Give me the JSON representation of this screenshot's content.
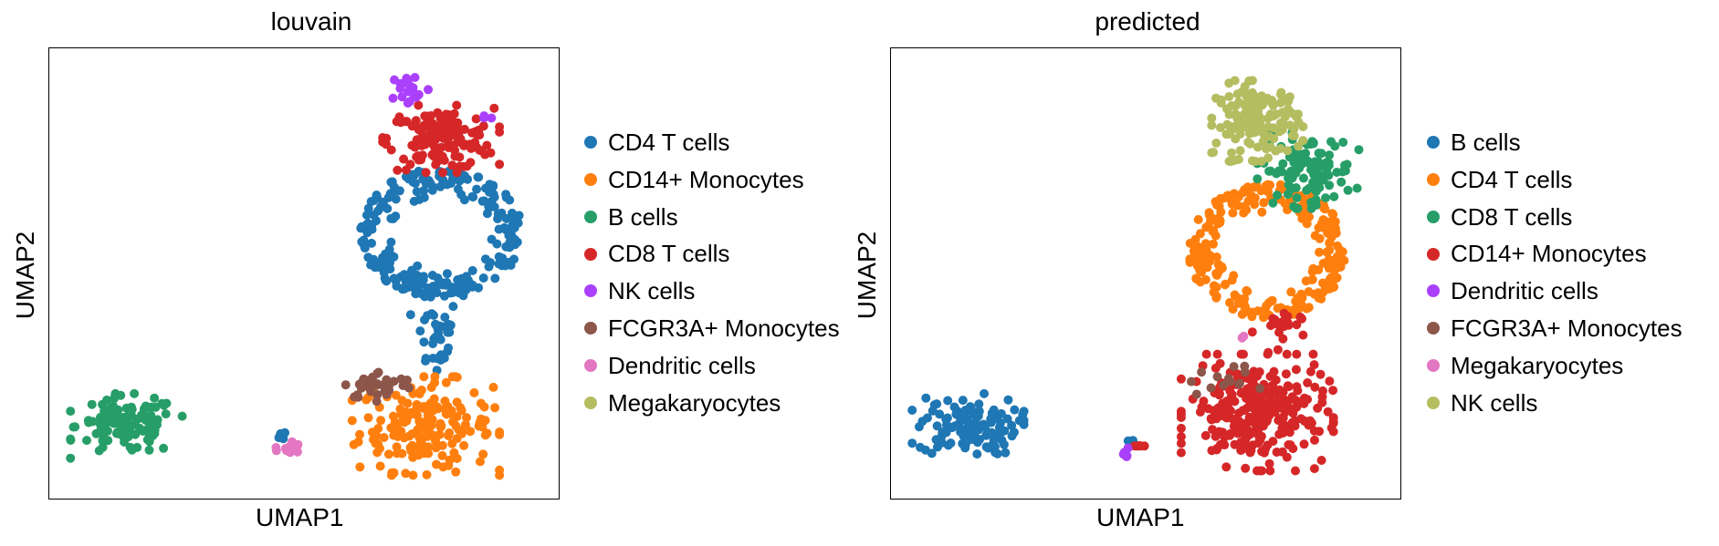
{
  "chart_data": [
    {
      "type": "scatter",
      "title": "louvain",
      "xlabel": "UMAP1",
      "ylabel": "UMAP2",
      "xlim": [
        0,
        10
      ],
      "ylim": [
        0,
        10
      ],
      "grid": false,
      "legend_position": "right",
      "legend": [
        {
          "name": "CD4 T cells",
          "color": "#1f77b4"
        },
        {
          "name": "CD14+ Monocytes",
          "color": "#ff7f0e"
        },
        {
          "name": "B cells",
          "color": "#279e68"
        },
        {
          "name": "CD8 T cells",
          "color": "#d62728"
        },
        {
          "name": "NK cells",
          "color": "#aa40fc"
        },
        {
          "name": "FCGR3A+ Monocytes",
          "color": "#8c564b"
        },
        {
          "name": "Dendritic cells",
          "color": "#e377c2"
        },
        {
          "name": "Megakaryocytes",
          "color": "#b5bd61"
        }
      ],
      "clusters": [
        {
          "series": "CD4 T cells",
          "cx": 7.7,
          "cy": 5.9,
          "rx": 1.6,
          "ry": 1.45,
          "n": 240,
          "shape": "ring"
        },
        {
          "series": "CD4 T cells",
          "cx": 7.6,
          "cy": 3.6,
          "rx": 0.5,
          "ry": 1.0,
          "n": 35
        },
        {
          "series": "CD4 T cells",
          "cx": 4.6,
          "cy": 1.4,
          "rx": 0.15,
          "ry": 0.15,
          "n": 4
        },
        {
          "series": "CD14+ Monocytes",
          "cx": 7.4,
          "cy": 1.6,
          "rx": 1.45,
          "ry": 1.1,
          "n": 190
        },
        {
          "series": "B cells",
          "cx": 1.5,
          "cy": 1.6,
          "rx": 1.1,
          "ry": 0.72,
          "n": 120
        },
        {
          "series": "CD8 T cells",
          "cx": 7.7,
          "cy": 8.0,
          "rx": 1.15,
          "ry": 0.75,
          "n": 150
        },
        {
          "series": "NK cells",
          "cx": 7.1,
          "cy": 9.1,
          "rx": 0.45,
          "ry": 0.45,
          "n": 22
        },
        {
          "series": "NK cells",
          "cx": 8.5,
          "cy": 8.5,
          "rx": 0.2,
          "ry": 0.12,
          "n": 3
        },
        {
          "series": "FCGR3A+ Monocytes",
          "cx": 6.5,
          "cy": 2.5,
          "rx": 0.8,
          "ry": 0.35,
          "n": 38
        },
        {
          "series": "Dendritic cells",
          "cx": 4.7,
          "cy": 1.1,
          "rx": 0.25,
          "ry": 0.18,
          "n": 14
        }
      ]
    },
    {
      "type": "scatter",
      "title": "predicted",
      "xlabel": "UMAP1",
      "ylabel": "UMAP2",
      "xlim": [
        0,
        10
      ],
      "ylim": [
        0,
        10
      ],
      "grid": false,
      "legend_position": "right",
      "legend": [
        {
          "name": "B cells",
          "color": "#1f77b4"
        },
        {
          "name": "CD4 T cells",
          "color": "#ff7f0e"
        },
        {
          "name": "CD8 T cells",
          "color": "#279e68"
        },
        {
          "name": "CD14+ Monocytes",
          "color": "#d62728"
        },
        {
          "name": "Dendritic cells",
          "color": "#aa40fc"
        },
        {
          "name": "FCGR3A+ Monocytes",
          "color": "#8c564b"
        },
        {
          "name": "Megakaryocytes",
          "color": "#e377c2"
        },
        {
          "name": "NK cells",
          "color": "#b5bd61"
        }
      ],
      "clusters": [
        {
          "series": "B cells",
          "cx": 1.5,
          "cy": 1.6,
          "rx": 1.1,
          "ry": 0.72,
          "n": 120
        },
        {
          "series": "B cells",
          "cx": 4.7,
          "cy": 1.2,
          "rx": 0.15,
          "ry": 0.12,
          "n": 3
        },
        {
          "series": "CD4 T cells",
          "cx": 7.4,
          "cy": 5.5,
          "rx": 1.55,
          "ry": 1.5,
          "n": 250,
          "shape": "ring"
        },
        {
          "series": "CD8 T cells",
          "cx": 8.2,
          "cy": 7.3,
          "rx": 1.0,
          "ry": 0.85,
          "n": 110
        },
        {
          "series": "NK cells",
          "cx": 7.2,
          "cy": 8.4,
          "rx": 0.9,
          "ry": 0.9,
          "n": 150
        },
        {
          "series": "CD14+ Monocytes",
          "cx": 7.2,
          "cy": 1.9,
          "rx": 1.5,
          "ry": 1.3,
          "n": 280
        },
        {
          "series": "CD14+ Monocytes",
          "cx": 7.6,
          "cy": 3.7,
          "rx": 0.5,
          "ry": 0.6,
          "n": 20
        },
        {
          "series": "CD14+ Monocytes",
          "cx": 4.85,
          "cy": 1.15,
          "rx": 0.15,
          "ry": 0.12,
          "n": 6
        },
        {
          "series": "Dendritic cells",
          "cx": 4.6,
          "cy": 1.0,
          "rx": 0.1,
          "ry": 0.18,
          "n": 5
        },
        {
          "series": "FCGR3A+ Monocytes",
          "cx": 6.5,
          "cy": 2.6,
          "rx": 0.75,
          "ry": 0.35,
          "n": 14
        },
        {
          "series": "Megakaryocytes",
          "cx": 6.9,
          "cy": 3.6,
          "rx": 0.05,
          "ry": 0.1,
          "n": 2
        }
      ]
    }
  ]
}
